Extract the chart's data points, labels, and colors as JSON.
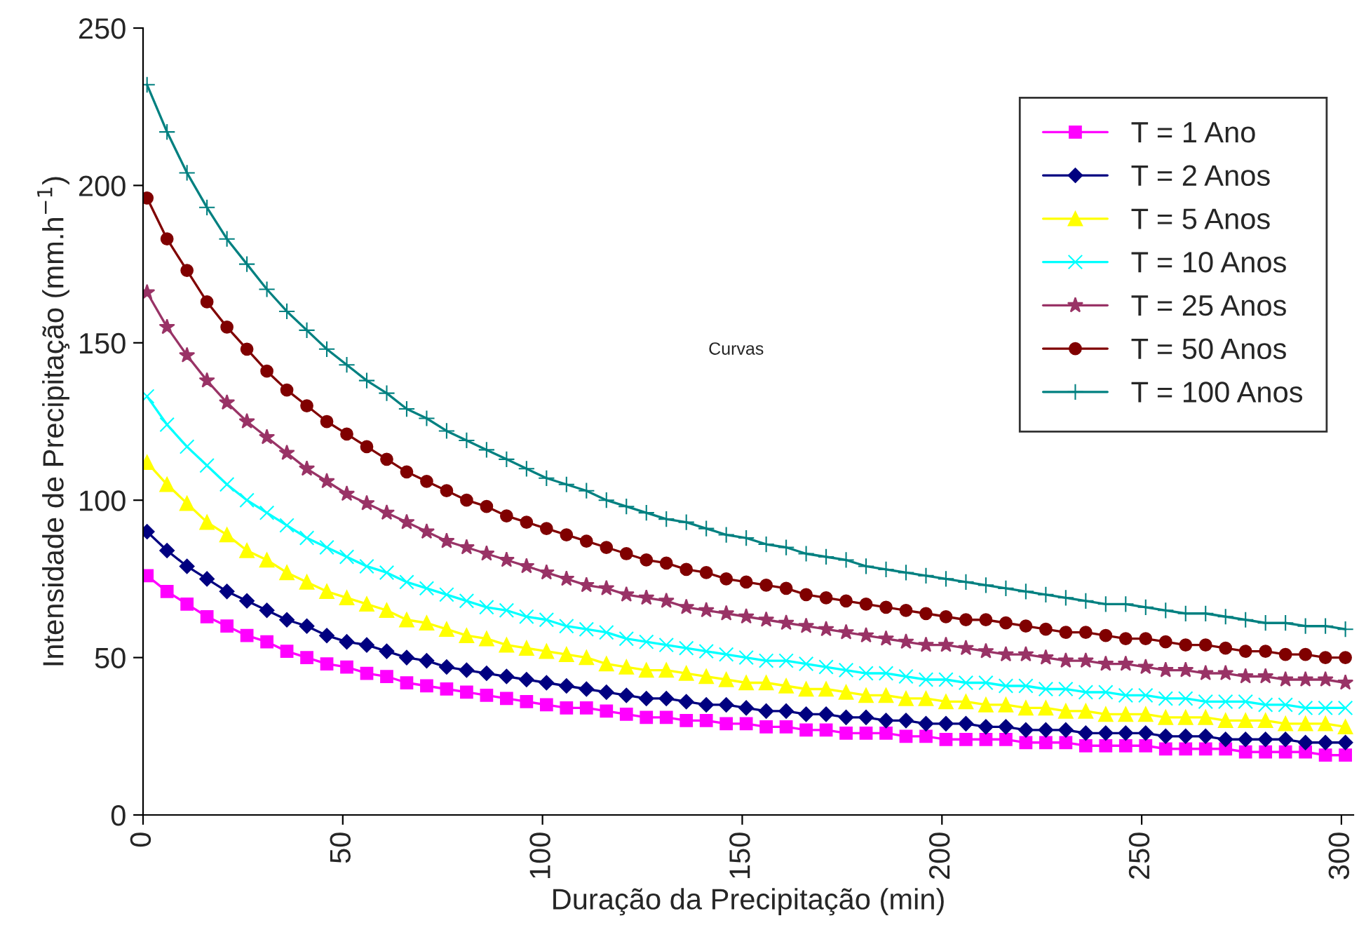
{
  "chart_data": {
    "type": "line",
    "xlabel": "Duração da Precipitação (min)",
    "ylabel": "Intensidade de Precipitação (mm.h$^{−1}$)",
    "annotations": [
      "Curvas"
    ],
    "x": [
      1,
      6,
      11,
      16,
      21,
      26,
      31,
      36,
      41,
      46,
      51,
      56,
      61,
      66,
      71,
      76,
      81,
      86,
      91,
      96,
      101,
      106,
      111,
      116,
      121,
      126,
      131,
      136,
      141,
      146,
      151,
      156,
      161,
      166,
      171,
      176,
      181,
      186,
      191,
      196,
      201,
      206,
      211,
      216,
      221,
      226,
      231,
      236,
      241,
      246,
      251,
      256,
      261,
      266,
      271,
      276,
      281,
      286,
      291,
      296,
      301
    ],
    "xlim": [
      0,
      303
    ],
    "xticks": [
      0,
      50,
      100,
      150,
      200,
      250,
      300
    ],
    "ylim": [
      0,
      250
    ],
    "yticks": [
      0,
      50,
      100,
      150,
      200,
      250
    ],
    "grid": false,
    "legend": "top right",
    "series": [
      {
        "name": "T = 1 Ano",
        "color": "#ff00ff",
        "marker": "square",
        "values": [
          76,
          71,
          67,
          63,
          60,
          57,
          55,
          52,
          50,
          48,
          47,
          45,
          44,
          42,
          41,
          40,
          39,
          38,
          37,
          36,
          35,
          34,
          34,
          33,
          32,
          31,
          31,
          30,
          30,
          29,
          29,
          28,
          28,
          27,
          27,
          26,
          26,
          26,
          25,
          25,
          24,
          24,
          24,
          24,
          23,
          23,
          23,
          22,
          22,
          22,
          22,
          21,
          21,
          21,
          21,
          20,
          20,
          20,
          20,
          19,
          19
        ]
      },
      {
        "name": "T = 2 Anos",
        "color": "#000080",
        "marker": "diamond",
        "values": [
          90,
          84,
          79,
          75,
          71,
          68,
          65,
          62,
          60,
          57,
          55,
          54,
          52,
          50,
          49,
          47,
          46,
          45,
          44,
          43,
          42,
          41,
          40,
          39,
          38,
          37,
          37,
          36,
          35,
          35,
          34,
          33,
          33,
          32,
          32,
          31,
          31,
          30,
          30,
          29,
          29,
          29,
          28,
          28,
          27,
          27,
          27,
          26,
          26,
          26,
          26,
          25,
          25,
          25,
          24,
          24,
          24,
          24,
          23,
          23,
          23
        ]
      },
      {
        "name": "T = 5 Anos",
        "color": "#ffff00",
        "marker": "triangle",
        "values": [
          112,
          105,
          99,
          93,
          89,
          84,
          81,
          77,
          74,
          71,
          69,
          67,
          65,
          62,
          61,
          59,
          57,
          56,
          54,
          53,
          52,
          51,
          50,
          48,
          47,
          46,
          46,
          45,
          44,
          43,
          42,
          42,
          41,
          40,
          40,
          39,
          38,
          38,
          37,
          37,
          36,
          36,
          35,
          35,
          34,
          34,
          33,
          33,
          32,
          32,
          32,
          31,
          31,
          31,
          30,
          30,
          30,
          29,
          29,
          29,
          28
        ]
      },
      {
        "name": "T = 10 Anos",
        "color": "#00ffff",
        "marker": "cross",
        "values": [
          133,
          124,
          117,
          111,
          105,
          100,
          96,
          92,
          88,
          85,
          82,
          79,
          77,
          74,
          72,
          70,
          68,
          66,
          65,
          63,
          62,
          60,
          59,
          58,
          56,
          55,
          54,
          53,
          52,
          51,
          50,
          49,
          49,
          48,
          47,
          46,
          45,
          45,
          44,
          43,
          43,
          42,
          42,
          41,
          41,
          40,
          40,
          39,
          39,
          38,
          38,
          37,
          37,
          36,
          36,
          36,
          35,
          35,
          34,
          34,
          34
        ]
      },
      {
        "name": "T = 25 Anos",
        "color": "#993366",
        "marker": "star",
        "values": [
          166,
          155,
          146,
          138,
          131,
          125,
          120,
          115,
          110,
          106,
          102,
          99,
          96,
          93,
          90,
          87,
          85,
          83,
          81,
          79,
          77,
          75,
          73,
          72,
          70,
          69,
          68,
          66,
          65,
          64,
          63,
          62,
          61,
          60,
          59,
          58,
          57,
          56,
          55,
          54,
          54,
          53,
          52,
          51,
          51,
          50,
          49,
          49,
          48,
          48,
          47,
          46,
          46,
          45,
          45,
          44,
          44,
          43,
          43,
          43,
          42
        ]
      },
      {
        "name": "T = 50 Anos",
        "color": "#800000",
        "marker": "circle",
        "values": [
          196,
          183,
          173,
          163,
          155,
          148,
          141,
          135,
          130,
          125,
          121,
          117,
          113,
          109,
          106,
          103,
          100,
          98,
          95,
          93,
          91,
          89,
          87,
          85,
          83,
          81,
          80,
          78,
          77,
          75,
          74,
          73,
          72,
          70,
          69,
          68,
          67,
          66,
          65,
          64,
          63,
          62,
          62,
          61,
          60,
          59,
          58,
          58,
          57,
          56,
          56,
          55,
          54,
          54,
          53,
          52,
          52,
          51,
          51,
          50,
          50
        ]
      },
      {
        "name": "T = 100 Anos",
        "color": "#008080",
        "marker": "plus",
        "values": [
          232,
          217,
          204,
          193,
          183,
          175,
          167,
          160,
          154,
          148,
          143,
          138,
          134,
          129,
          126,
          122,
          119,
          116,
          113,
          110,
          107,
          105,
          103,
          100,
          98,
          96,
          94,
          93,
          91,
          89,
          88,
          86,
          85,
          83,
          82,
          81,
          79,
          78,
          77,
          76,
          75,
          74,
          73,
          72,
          71,
          70,
          69,
          68,
          67,
          67,
          66,
          65,
          64,
          64,
          63,
          62,
          61,
          61,
          60,
          60,
          59
        ]
      }
    ]
  }
}
